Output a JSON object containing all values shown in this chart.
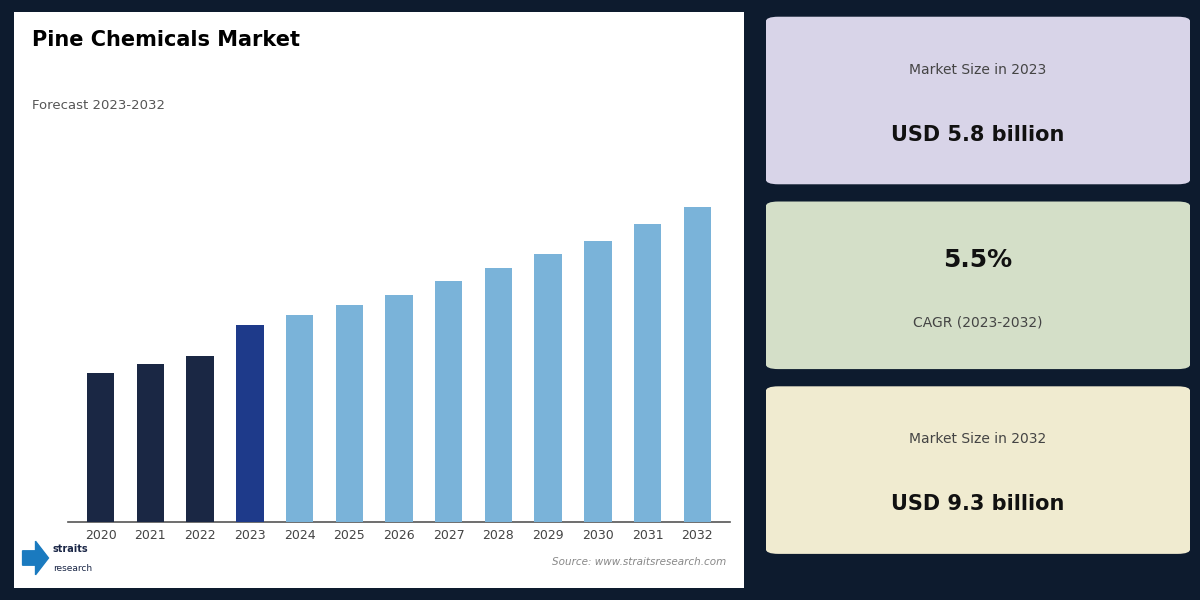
{
  "title": "Pine Chemicals Market",
  "subtitle": "Forecast 2023-2032",
  "years": [
    2020,
    2021,
    2022,
    2023,
    2024,
    2025,
    2026,
    2027,
    2028,
    2029,
    2030,
    2031,
    2032
  ],
  "values": [
    4.4,
    4.65,
    4.9,
    5.8,
    6.1,
    6.4,
    6.7,
    7.1,
    7.5,
    7.9,
    8.3,
    8.8,
    9.3
  ],
  "bar_colors": [
    "#1a2744",
    "#1a2744",
    "#1a2744",
    "#1e3a8a",
    "#7ab3d9",
    "#7ab3d9",
    "#7ab3d9",
    "#7ab3d9",
    "#7ab3d9",
    "#7ab3d9",
    "#7ab3d9",
    "#7ab3d9",
    "#7ab3d9"
  ],
  "bar_color_forecast": "#7ab3d9",
  "background_dark": "#0d1b2e",
  "background_chart": "#ffffff",
  "card1_bg": "#d8d4e8",
  "card2_bg": "#d4dfc8",
  "card3_bg": "#f0ebd0",
  "card1_label": "Market Size in 2023",
  "card1_value": "USD 5.8 billion",
  "card2_value": "5.5%",
  "card2_label": "CAGR (2023-2032)",
  "card3_label": "Market Size in 2032",
  "card3_value": "USD 9.3 billion",
  "source_text": "Source: www.straitsresearch.com",
  "ylim_max": 11.5
}
